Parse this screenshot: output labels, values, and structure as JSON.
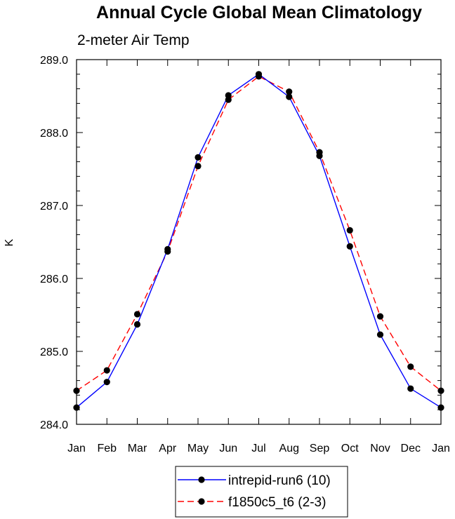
{
  "chart_data": {
    "type": "line",
    "title": "Annual Cycle Global Mean Climatology",
    "subtitle": "2-meter Air Temp",
    "xlabel": "",
    "ylabel": "K",
    "categories": [
      "Jan",
      "Feb",
      "Mar",
      "Apr",
      "May",
      "Jun",
      "Jul",
      "Aug",
      "Sep",
      "Oct",
      "Nov",
      "Dec",
      "Jan"
    ],
    "ylim": [
      284.0,
      289.0
    ],
    "yticks": [
      "284.0",
      "285.0",
      "286.0",
      "287.0",
      "288.0",
      "289.0"
    ],
    "grid": false,
    "legend_position": "bottom-center",
    "series": [
      {
        "name": "intrepid-run6 (10)",
        "color": "#0000ff",
        "line_style": "solid",
        "marker": "filled-circle",
        "values": [
          284.23,
          284.58,
          285.37,
          286.4,
          287.66,
          288.51,
          288.8,
          288.49,
          287.68,
          286.44,
          285.23,
          284.49,
          284.23
        ]
      },
      {
        "name": "f1850c5_t6 (2-3)",
        "color": "#ff0000",
        "line_style": "dashed",
        "marker": "filled-circle",
        "values": [
          284.46,
          284.74,
          285.51,
          286.37,
          287.54,
          288.45,
          288.77,
          288.56,
          287.73,
          286.66,
          285.48,
          284.79,
          284.46
        ]
      }
    ]
  }
}
